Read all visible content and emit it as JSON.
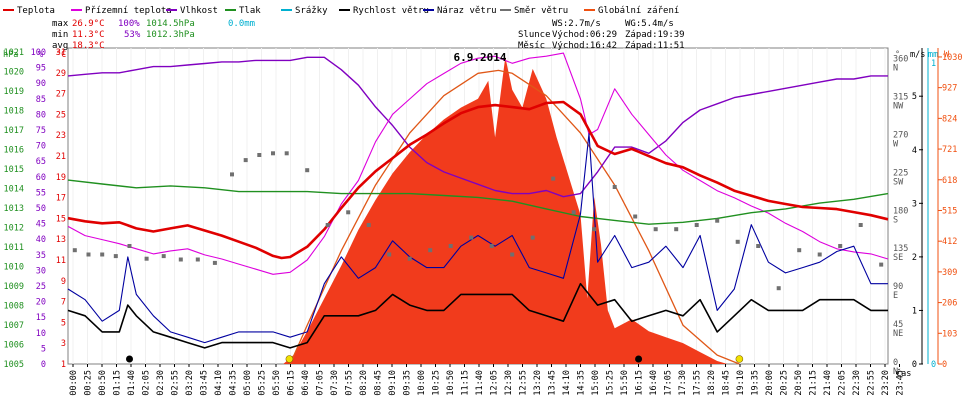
{
  "chart_data": {
    "type": "line",
    "title": "6.9.2014",
    "xlabel": "čas",
    "x_ticks": [
      "00:00",
      "00:25",
      "00:50",
      "01:15",
      "01:40",
      "02:05",
      "02:30",
      "02:55",
      "03:20",
      "03:45",
      "04:10",
      "04:35",
      "05:00",
      "05:25",
      "05:50",
      "06:15",
      "06:40",
      "07:05",
      "07:30",
      "07:55",
      "08:20",
      "08:45",
      "09:10",
      "09:35",
      "10:00",
      "10:25",
      "10:50",
      "11:15",
      "11:40",
      "12:05",
      "12:30",
      "12:55",
      "13:20",
      "13:45",
      "14:10",
      "14:35",
      "15:00",
      "15:25",
      "15:50",
      "16:15",
      "16:40",
      "17:05",
      "17:30",
      "17:55",
      "18:20",
      "18:45",
      "19:10",
      "19:35",
      "20:00",
      "20:25",
      "20:50",
      "21:15",
      "21:40",
      "22:05",
      "22:30",
      "22:55",
      "23:20",
      "23:45"
    ],
    "legend": [
      {
        "label": "Teplota",
        "color": "#e00000"
      },
      {
        "label": "Přízemní teplota",
        "color": "#dd00dd"
      },
      {
        "label": "Vlhkost",
        "color": "#8000c0"
      },
      {
        "label": "Tlak",
        "color": "#209020"
      },
      {
        "label": "Srážky",
        "color": "#00b0d0"
      },
      {
        "label": "Rychlost větru",
        "color": "#000000"
      },
      {
        "label": "Náraz větru",
        "color": "#0000a0"
      },
      {
        "label": "Směr větru",
        "color": "#707070"
      },
      {
        "label": "Globální záření",
        "color": "#f05010"
      }
    ],
    "stats": {
      "max": {
        "label": "max",
        "temp": "26.9°C",
        "hum": "100%",
        "press": "1014.5hPa",
        "rain": "0.0mm"
      },
      "min": {
        "label": "min",
        "temp": "11.3°C",
        "hum": "53%",
        "press": "1012.3hPa"
      },
      "avg": {
        "label": "avg",
        "temp": "18.3°C"
      },
      "ws": "WS:2.7m/s",
      "wg": "WG:5.4m/s",
      "sun": {
        "label": "Slunce",
        "rise": "Východ:06:29",
        "set": "Západ:19:39"
      },
      "moon": {
        "label": "Měsíc",
        "rise": "Východ:16:42",
        "set": "Západ:11:51"
      }
    },
    "axes": {
      "hpa": {
        "unit": "hPa",
        "ticks": [
          "1005",
          "1006",
          "1007",
          "1008",
          "1009",
          "1010",
          "1011",
          "1012",
          "1013",
          "1014",
          "1015",
          "1016",
          "1017",
          "1018",
          "1019",
          "1020",
          "1021"
        ]
      },
      "pct": {
        "unit": "%",
        "ticks": [
          "0",
          "5",
          "10",
          "15",
          "20",
          "25",
          "30",
          "35",
          "40",
          "45",
          "50",
          "55",
          "60",
          "65",
          "70",
          "75",
          "80",
          "85",
          "90",
          "95",
          "100"
        ]
      },
      "degc": {
        "unit": "°C",
        "ticks": [
          "1",
          "3",
          "5",
          "7",
          "9",
          "11",
          "13",
          "15",
          "17",
          "19",
          "21",
          "23",
          "25",
          "27",
          "29",
          "31"
        ]
      },
      "dir": {
        "unit": "°",
        "ticks": [
          "0",
          "45",
          "90",
          "135",
          "180",
          "225",
          "270",
          "315",
          "360"
        ],
        "labels": [
          "N",
          "NE",
          "E",
          "SE",
          "S",
          "SW",
          "W",
          "NW",
          "N"
        ]
      },
      "ms": {
        "unit": "m/s",
        "ticks": [
          "0",
          "1",
          "2",
          "3",
          "4",
          "5"
        ]
      },
      "mm": {
        "unit": "mm",
        "ticks": [
          "0",
          "1"
        ]
      },
      "wm2": {
        "unit": "W",
        "ticks": [
          "0",
          "103",
          "206",
          "309",
          "412",
          "515",
          "618",
          "721",
          "824",
          "927",
          "1030"
        ]
      }
    },
    "ylim_temp": [
      1,
      32
    ],
    "ylim_hum": [
      0,
      102
    ],
    "ylim_press": [
      1005,
      1021.5
    ],
    "ylim_wind": [
      0,
      5.9
    ],
    "ylim_dir": [
      0,
      375
    ],
    "ylim_rad": [
      0,
      1060
    ],
    "series": {
      "temperature": {
        "x": [
          0,
          0.5,
          1,
          1.5,
          2,
          2.5,
          3,
          3.5,
          4,
          4.5,
          5,
          5.5,
          6,
          6.25,
          6.5,
          7,
          7.5,
          8,
          8.5,
          9,
          9.5,
          10,
          10.5,
          11,
          11.5,
          12,
          12.5,
          13,
          13.5,
          14,
          14.5,
          15,
          15.5,
          16,
          16.5,
          17,
          17.5,
          18,
          18.5,
          19,
          19.5,
          20,
          20.5,
          21,
          21.5,
          22,
          22.5,
          23,
          23.5,
          24
        ],
        "y": [
          15.3,
          15.0,
          14.8,
          14.9,
          14.3,
          14.0,
          14.3,
          14.6,
          14.1,
          13.6,
          13.0,
          12.4,
          11.6,
          11.4,
          11.5,
          12.5,
          14.2,
          16.3,
          18.3,
          19.9,
          21.2,
          22.5,
          23.5,
          24.6,
          25.6,
          26.2,
          26.4,
          26.2,
          26.0,
          26.6,
          26.7,
          25.5,
          22.4,
          21.6,
          22.1,
          21.4,
          20.7,
          20.3,
          19.5,
          18.8,
          18.0,
          17.5,
          17.0,
          16.7,
          16.4,
          16.3,
          16.2,
          15.9,
          15.6,
          15.2
        ]
      },
      "ground_temperature": {
        "x": [
          0,
          0.5,
          1,
          1.5,
          2,
          2.5,
          3,
          3.5,
          4,
          4.5,
          5,
          5.5,
          6,
          6.5,
          7,
          7.5,
          8,
          8.5,
          9,
          9.5,
          10,
          10.5,
          11,
          11.5,
          12,
          12.5,
          13,
          13.5,
          14,
          14.5,
          15,
          15.25,
          15.5,
          16,
          16.5,
          17,
          17.5,
          18,
          18.5,
          19,
          19.5,
          20,
          20.5,
          21,
          21.5,
          22,
          22.5,
          23,
          23.5,
          24
        ],
        "y": [
          14.5,
          13.6,
          13.2,
          12.8,
          12.3,
          11.8,
          12.1,
          12.3,
          11.7,
          11.3,
          10.8,
          10.3,
          9.8,
          10.0,
          11.2,
          13.5,
          16.7,
          19.0,
          22.8,
          25.5,
          27.0,
          28.5,
          29.5,
          30.5,
          31.0,
          31.2,
          30.5,
          31.0,
          31.2,
          31.5,
          27.0,
          23.5,
          24.0,
          28.0,
          25.5,
          23.5,
          21.5,
          20.0,
          19.0,
          18.0,
          17.3,
          16.5,
          15.8,
          14.8,
          14.0,
          13.0,
          12.3,
          12.0,
          11.8,
          11.3
        ]
      },
      "humidity": {
        "x": [
          0,
          0.5,
          1,
          1.5,
          2,
          2.5,
          3,
          3.5,
          4,
          4.5,
          5,
          5.5,
          6,
          6.5,
          7,
          7.5,
          8,
          8.5,
          9,
          9.5,
          10,
          10.5,
          11,
          11.5,
          12,
          12.5,
          13,
          13.5,
          14,
          14.5,
          15,
          15.5,
          16,
          16.5,
          17,
          17.5,
          18,
          18.5,
          19,
          19.5,
          20,
          20.5,
          21,
          21.5,
          22,
          22.5,
          23,
          23.5,
          24
        ],
        "y": [
          93,
          93.5,
          94,
          94,
          95,
          96,
          96,
          96.5,
          97,
          97.5,
          97.5,
          98,
          98,
          98,
          99,
          99,
          95,
          90,
          83,
          77,
          70,
          65,
          62,
          60,
          58,
          56,
          55,
          55,
          56,
          54,
          55,
          62,
          70,
          70,
          68,
          72,
          78,
          82,
          84,
          86,
          87,
          88,
          89,
          90,
          91,
          92,
          92,
          93,
          93
        ]
      },
      "pressure": {
        "x": [
          0,
          1,
          2,
          3,
          4,
          5,
          6,
          7,
          8,
          9,
          10,
          11,
          12,
          13,
          14,
          15,
          16,
          17,
          18,
          19,
          20,
          21,
          22,
          23,
          24
        ],
        "y": [
          1014.6,
          1014.4,
          1014.2,
          1014.3,
          1014.2,
          1014.0,
          1014.0,
          1014.0,
          1013.9,
          1013.9,
          1013.9,
          1013.8,
          1013.7,
          1013.5,
          1013.1,
          1012.7,
          1012.5,
          1012.3,
          1012.4,
          1012.6,
          1012.9,
          1013.1,
          1013.4,
          1013.6,
          1013.9
        ]
      },
      "wind_speed": {
        "x": [
          0,
          0.5,
          1,
          1.5,
          1.75,
          2,
          2.5,
          3,
          3.5,
          4,
          4.5,
          5,
          5.5,
          6,
          6.5,
          7,
          7.5,
          8,
          8.5,
          9,
          9.5,
          10,
          10.5,
          11,
          11.5,
          12,
          12.5,
          13,
          13.5,
          14,
          14.5,
          15,
          15.5,
          16,
          16.5,
          17,
          17.5,
          18,
          18.5,
          19,
          19.5,
          20,
          20.5,
          21,
          21.5,
          22,
          22.5,
          23,
          23.5,
          24
        ],
        "y": [
          1.0,
          0.9,
          0.6,
          0.6,
          1.1,
          0.9,
          0.6,
          0.5,
          0.4,
          0.3,
          0.4,
          0.4,
          0.4,
          0.4,
          0.3,
          0.4,
          0.9,
          0.9,
          0.9,
          1.0,
          1.3,
          1.1,
          1.0,
          1.0,
          1.3,
          1.3,
          1.3,
          1.3,
          1.0,
          0.9,
          0.8,
          1.5,
          1.1,
          1.2,
          0.8,
          0.9,
          1.0,
          0.9,
          1.2,
          0.6,
          0.9,
          1.2,
          1.0,
          1.0,
          1.0,
          1.2,
          1.2,
          1.2,
          1.0,
          1.0
        ]
      },
      "wind_gust": {
        "x": [
          0,
          0.5,
          1,
          1.5,
          1.75,
          2,
          2.5,
          3,
          3.5,
          4,
          4.5,
          5,
          5.5,
          6,
          6.5,
          7,
          7.5,
          8,
          8.5,
          9,
          9.5,
          10,
          10.5,
          11,
          11.5,
          12,
          12.5,
          13,
          13.5,
          14,
          14.5,
          15,
          15.25,
          15.5,
          16,
          16.5,
          17,
          17.5,
          18,
          18.5,
          19,
          19.5,
          20,
          20.5,
          21,
          21.5,
          22,
          22.5,
          23,
          23.5,
          24
        ],
        "y": [
          1.4,
          1.2,
          0.8,
          1.0,
          2.0,
          1.3,
          0.9,
          0.6,
          0.5,
          0.4,
          0.5,
          0.6,
          0.6,
          0.6,
          0.5,
          0.6,
          1.5,
          2.0,
          1.6,
          1.8,
          2.3,
          2.0,
          1.8,
          1.8,
          2.2,
          2.4,
          2.2,
          2.4,
          1.8,
          1.7,
          1.6,
          2.8,
          4.3,
          1.9,
          2.4,
          1.8,
          1.9,
          2.2,
          1.8,
          2.4,
          1.0,
          1.4,
          2.6,
          1.9,
          1.7,
          1.8,
          1.9,
          2.1,
          2.2,
          1.5,
          1.5
        ]
      },
      "wind_direction": {
        "x": [
          0.2,
          0.6,
          1.0,
          1.4,
          1.8,
          2.3,
          2.8,
          3.3,
          3.8,
          4.3,
          4.8,
          5.2,
          5.6,
          6.0,
          6.4,
          7.0,
          7.6,
          8.2,
          8.8,
          9.4,
          10.0,
          10.6,
          11.2,
          11.8,
          12.4,
          13.0,
          13.6,
          14.2,
          14.8,
          15.4,
          16.0,
          16.6,
          17.2,
          17.8,
          18.4,
          19.0,
          19.6,
          20.2,
          20.8,
          21.4,
          22.0,
          22.6,
          23.2,
          23.8
        ],
        "y": [
          135,
          130,
          130,
          128,
          140,
          125,
          128,
          124,
          124,
          120,
          225,
          242,
          248,
          250,
          250,
          230,
          165,
          180,
          165,
          130,
          125,
          135,
          140,
          150,
          140,
          130,
          150,
          220,
          180,
          160,
          210,
          175,
          160,
          160,
          165,
          170,
          145,
          140,
          90,
          135,
          130,
          140,
          165,
          118
        ]
      },
      "global_radiation": {
        "x": [
          0,
          6.3,
          6.6,
          7,
          7.5,
          8,
          8.5,
          9,
          9.5,
          10,
          10.5,
          11,
          11.5,
          12,
          12.3,
          12.5,
          12.8,
          13,
          13.3,
          13.6,
          14,
          14.3,
          14.6,
          15,
          15.2,
          15.4,
          15.6,
          15.8,
          16,
          16.5,
          17,
          17.5,
          18,
          18.5,
          19,
          19.3,
          24
        ],
        "y": [
          0,
          0,
          30,
          110,
          220,
          330,
          450,
          550,
          640,
          710,
          770,
          820,
          860,
          890,
          950,
          760,
          1030,
          920,
          860,
          990,
          890,
          760,
          650,
          500,
          220,
          560,
          400,
          180,
          120,
          150,
          110,
          90,
          70,
          40,
          10,
          0,
          0
        ]
      },
      "clear_sky_radiation": {
        "x": [
          6.5,
          7,
          8,
          9,
          10,
          11,
          12,
          12.6,
          13,
          14,
          15,
          16,
          17,
          18,
          19,
          19.65
        ],
        "y": [
          0,
          130,
          380,
          600,
          775,
          900,
          975,
          985,
          975,
          900,
          775,
          600,
          380,
          130,
          30,
          0
        ]
      }
    }
  }
}
